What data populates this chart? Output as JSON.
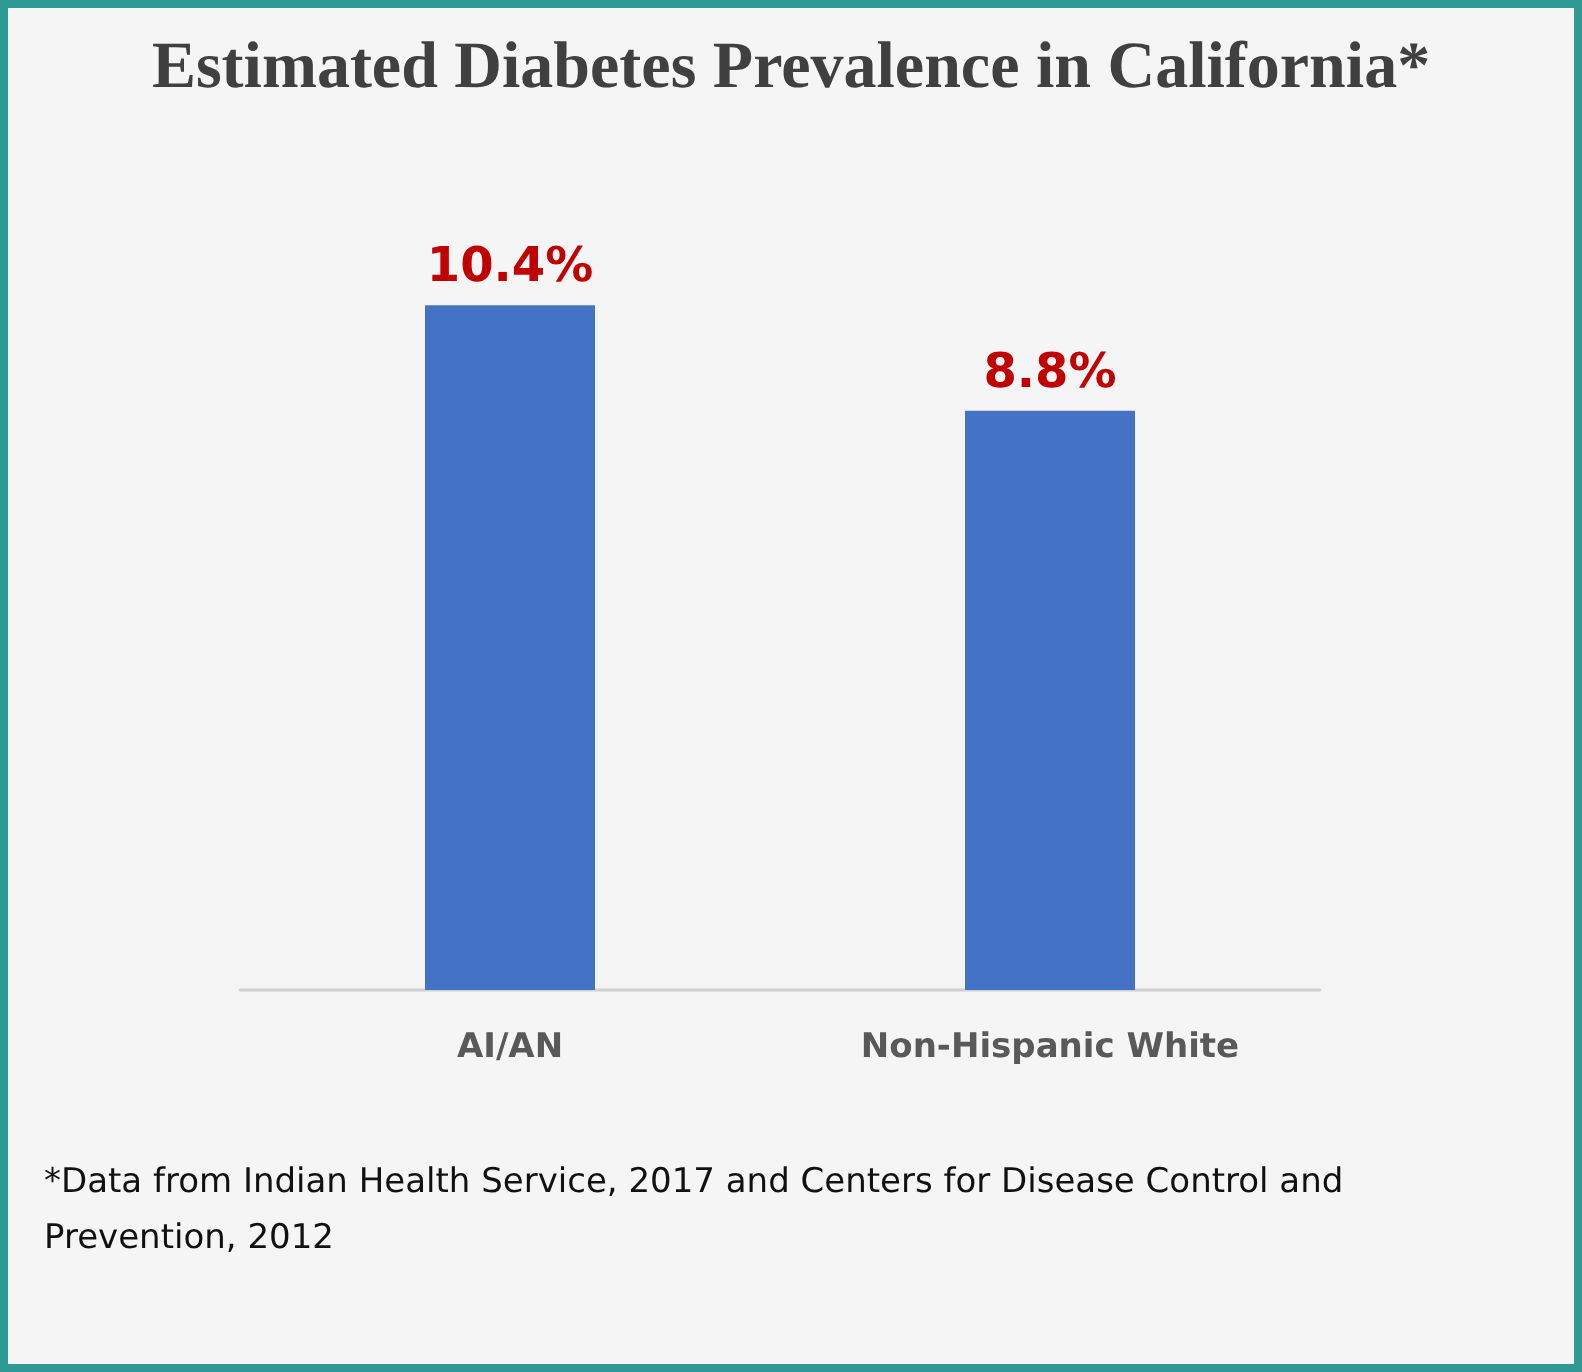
{
  "chart_data": {
    "type": "bar",
    "title": "Estimated Diabetes Prevalence in California*",
    "categories": [
      "AI/AN",
      "Non-Hispanic White"
    ],
    "values": [
      10.4,
      8.8
    ],
    "value_labels": [
      "10.4%",
      "8.8%"
    ],
    "color": "#4472c4",
    "annotations": [
      "*Data from Indian Health Service, 2017 and Centers for Disease Control and Prevention, 2012"
    ]
  }
}
